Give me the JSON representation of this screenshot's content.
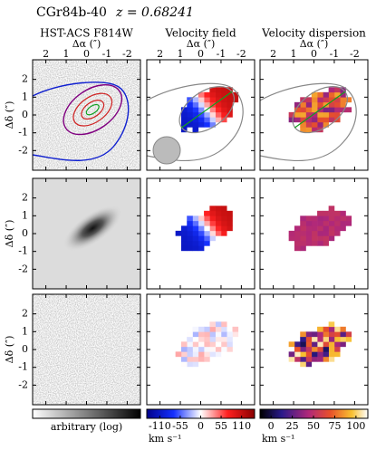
{
  "header": {
    "object": "CGr84b-40",
    "redshift": "z = 0.68241"
  },
  "columns": [
    {
      "title": "HST-ACS F814W"
    },
    {
      "title": "Velocity field"
    },
    {
      "title": "Velocity dispersion"
    }
  ],
  "x_axis": {
    "label": "Δα (″)",
    "ticks": [
      2,
      1,
      0,
      -1,
      -2
    ],
    "lim": [
      2.65,
      -2.65
    ]
  },
  "y_axis": {
    "label": "Δδ (″)",
    "ticks": [
      2,
      1,
      0,
      -1,
      -2
    ],
    "lim": [
      -3.1,
      3.1
    ]
  },
  "colorbars": [
    {
      "label": "arbitrary (log)"
    },
    {
      "label": "km s⁻¹",
      "ticks": [
        -110,
        -55,
        0,
        55,
        110
      ],
      "lim": [
        -145,
        145
      ]
    },
    {
      "label": "km s⁻¹",
      "ticks": [
        0,
        25,
        50,
        75,
        100
      ],
      "lim": [
        -13,
        114
      ]
    }
  ]
}
